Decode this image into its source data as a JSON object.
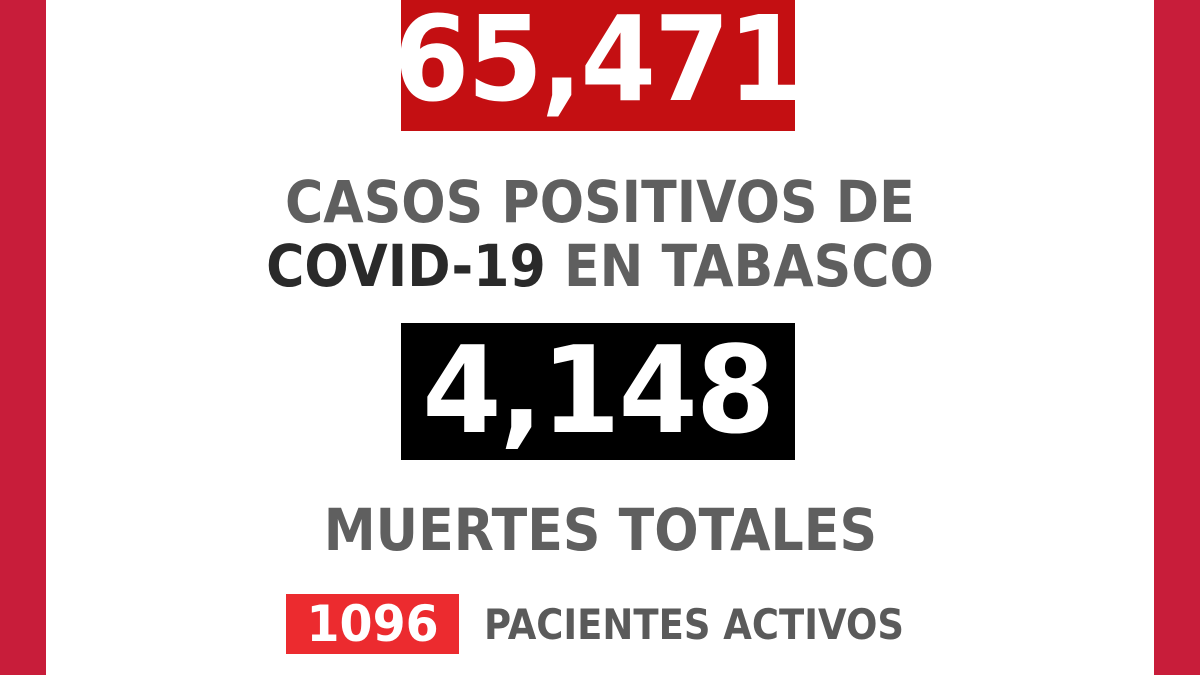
{
  "colors": {
    "side_bars": "#c81d3a",
    "cases_box": "#c40f12",
    "deaths_box": "#000000",
    "active_box": "#ec2b2f",
    "text_gray": "#5f5f5f",
    "text_dark": "#2a2a2a"
  },
  "cases": {
    "value": "65,471",
    "label_line1": "CASOS POSITIVOS DE",
    "label_line2_dark": "COVID-19",
    "label_line2_rest": " EN TABASCO"
  },
  "deaths": {
    "value": "4,148",
    "label": "MUERTES TOTALES"
  },
  "active": {
    "value": "1096",
    "label": "PACIENTES ACTIVOS"
  }
}
